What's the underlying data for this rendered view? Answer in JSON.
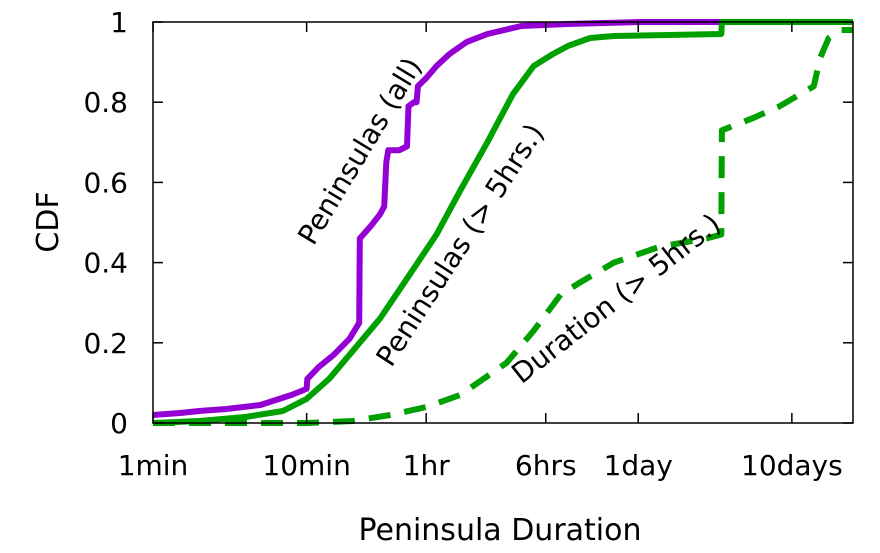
{
  "chart_data": {
    "type": "line",
    "xlabel": "Peninsula Duration",
    "ylabel": "CDF",
    "xscale": "log",
    "x_unit": "minutes",
    "xlim": [
      1,
      36000
    ],
    "ylim": [
      0,
      1
    ],
    "x_ticks": [
      {
        "value": 1,
        "label": "1min"
      },
      {
        "value": 10,
        "label": "10min"
      },
      {
        "value": 60,
        "label": "1hr"
      },
      {
        "value": 360,
        "label": "6hrs"
      },
      {
        "value": 1440,
        "label": "1day"
      },
      {
        "value": 14400,
        "label": "10days"
      }
    ],
    "y_ticks": [
      {
        "value": 0,
        "label": "0"
      },
      {
        "value": 0.2,
        "label": "0.2"
      },
      {
        "value": 0.4,
        "label": "0.4"
      },
      {
        "value": 0.6,
        "label": "0.6"
      },
      {
        "value": 0.8,
        "label": "0.8"
      },
      {
        "value": 1,
        "label": "1"
      }
    ],
    "grid": false,
    "series": [
      {
        "name": "Peninsulas (all)",
        "color": "#9400d3",
        "style": "solid",
        "x": [
          1,
          1.5,
          2,
          3,
          5,
          8,
          10,
          10.1,
          12,
          15,
          19,
          22,
          22.2,
          26,
          30,
          32,
          33,
          34,
          40,
          45,
          46,
          50,
          52,
          53,
          60,
          70,
          85,
          110,
          150,
          250,
          500,
          1500,
          36000
        ],
        "y": [
          0.02,
          0.025,
          0.03,
          0.035,
          0.045,
          0.07,
          0.085,
          0.11,
          0.14,
          0.17,
          0.21,
          0.25,
          0.46,
          0.49,
          0.52,
          0.54,
          0.65,
          0.68,
          0.68,
          0.69,
          0.79,
          0.8,
          0.8,
          0.84,
          0.86,
          0.89,
          0.92,
          0.95,
          0.97,
          0.99,
          0.995,
          1.0,
          1.0
        ]
      },
      {
        "name": "Peninsulas (> 5hrs.)",
        "color": "#00a000",
        "style": "solid",
        "x": [
          1,
          2,
          4,
          7,
          10,
          14,
          20,
          30,
          45,
          70,
          100,
          150,
          220,
          300,
          400,
          500,
          700,
          1000,
          5000,
          5050,
          36000
        ],
        "y": [
          0.0,
          0.005,
          0.015,
          0.03,
          0.06,
          0.11,
          0.18,
          0.26,
          0.36,
          0.47,
          0.58,
          0.7,
          0.82,
          0.89,
          0.92,
          0.94,
          0.96,
          0.965,
          0.97,
          1.0,
          1.0
        ]
      },
      {
        "name": "Duration (> 5hrs.)",
        "color": "#00a000",
        "style": "dashed",
        "x": [
          1,
          8,
          10,
          20,
          35,
          60,
          100,
          200,
          300,
          450,
          600,
          1000,
          2000,
          4000,
          5000,
          5050,
          8000,
          12000,
          20000,
          22000,
          25000,
          30000,
          36000
        ],
        "y": [
          0.0,
          0.0,
          0.0,
          0.005,
          0.02,
          0.04,
          0.07,
          0.15,
          0.23,
          0.32,
          0.35,
          0.4,
          0.44,
          0.46,
          0.47,
          0.73,
          0.76,
          0.79,
          0.84,
          0.91,
          0.96,
          0.98,
          0.98
        ]
      }
    ],
    "annotations": [
      {
        "text": "Peninsulas (all)",
        "series": 0
      },
      {
        "text": "Peninsulas (> 5hrs.)",
        "series": 1
      },
      {
        "text": "Duration (> 5hrs.)",
        "series": 2
      }
    ]
  }
}
